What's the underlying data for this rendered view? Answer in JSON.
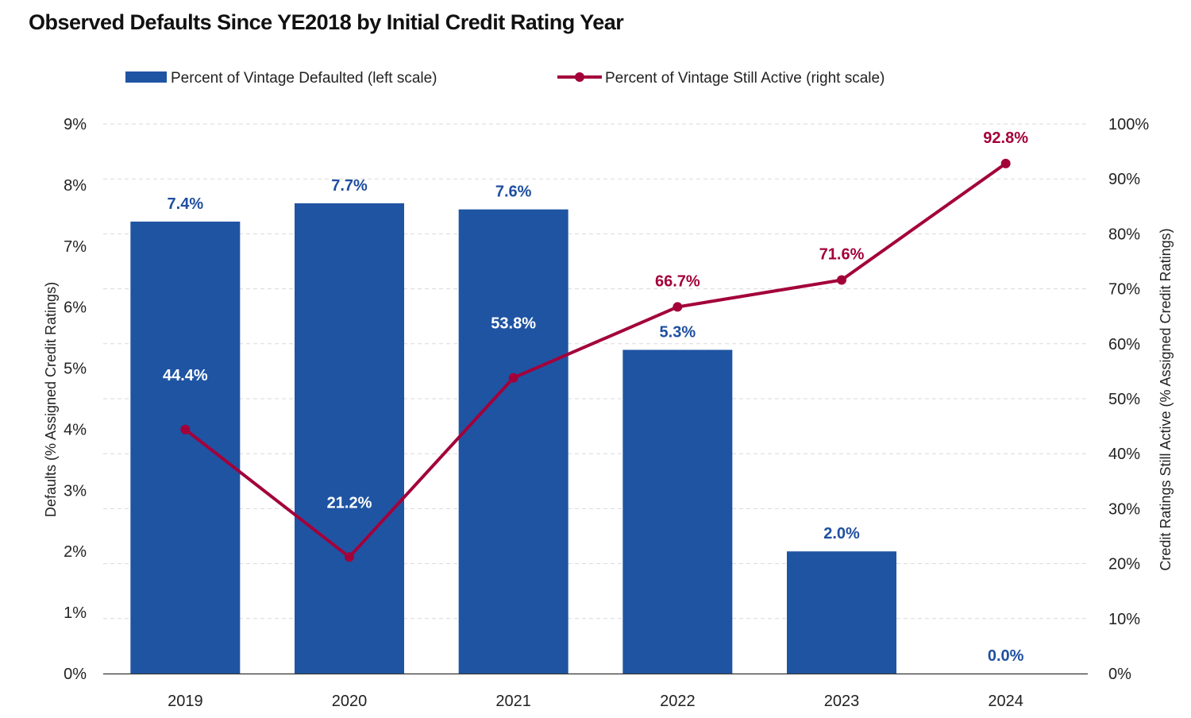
{
  "chart_data": {
    "type": "bar",
    "title": "Observed Defaults Since YE2018 by Initial Credit Rating Year",
    "categories": [
      "2019",
      "2020",
      "2021",
      "2022",
      "2023",
      "2024"
    ],
    "series": [
      {
        "name": "Percent of Vintage Defaulted (left scale)",
        "type": "bar",
        "axis": "left",
        "values": [
          7.4,
          7.7,
          7.6,
          5.3,
          2.0,
          0.0
        ],
        "labels": [
          "7.4%",
          "7.7%",
          "7.6%",
          "5.3%",
          "2.0%",
          "0.0%"
        ],
        "color": "#1f54a3"
      },
      {
        "name": "Percent of Vintage Still Active (right scale)",
        "type": "line",
        "axis": "right",
        "values": [
          44.4,
          21.2,
          53.8,
          66.7,
          71.6,
          92.8
        ],
        "labels": [
          "44.4%",
          "21.2%",
          "53.8%",
          "66.7%",
          "71.6%",
          "92.8%"
        ],
        "color": "#a3003a"
      }
    ],
    "ylabel_left": "Defaults (% Assigned Credit Ratings)",
    "ylabel_right": "Credit Ratings Still Active (% Assigned Credit Ratings)",
    "ylim_left": [
      0,
      9
    ],
    "ylim_right": [
      0,
      100
    ],
    "yticks_left": [
      "0%",
      "1%",
      "2%",
      "3%",
      "4%",
      "5%",
      "6%",
      "7%",
      "8%",
      "9%"
    ],
    "yticks_right": [
      "0%",
      "10%",
      "20%",
      "30%",
      "40%",
      "50%",
      "60%",
      "70%",
      "80%",
      "90%",
      "100%"
    ],
    "grid": true,
    "legend_position": "top"
  }
}
